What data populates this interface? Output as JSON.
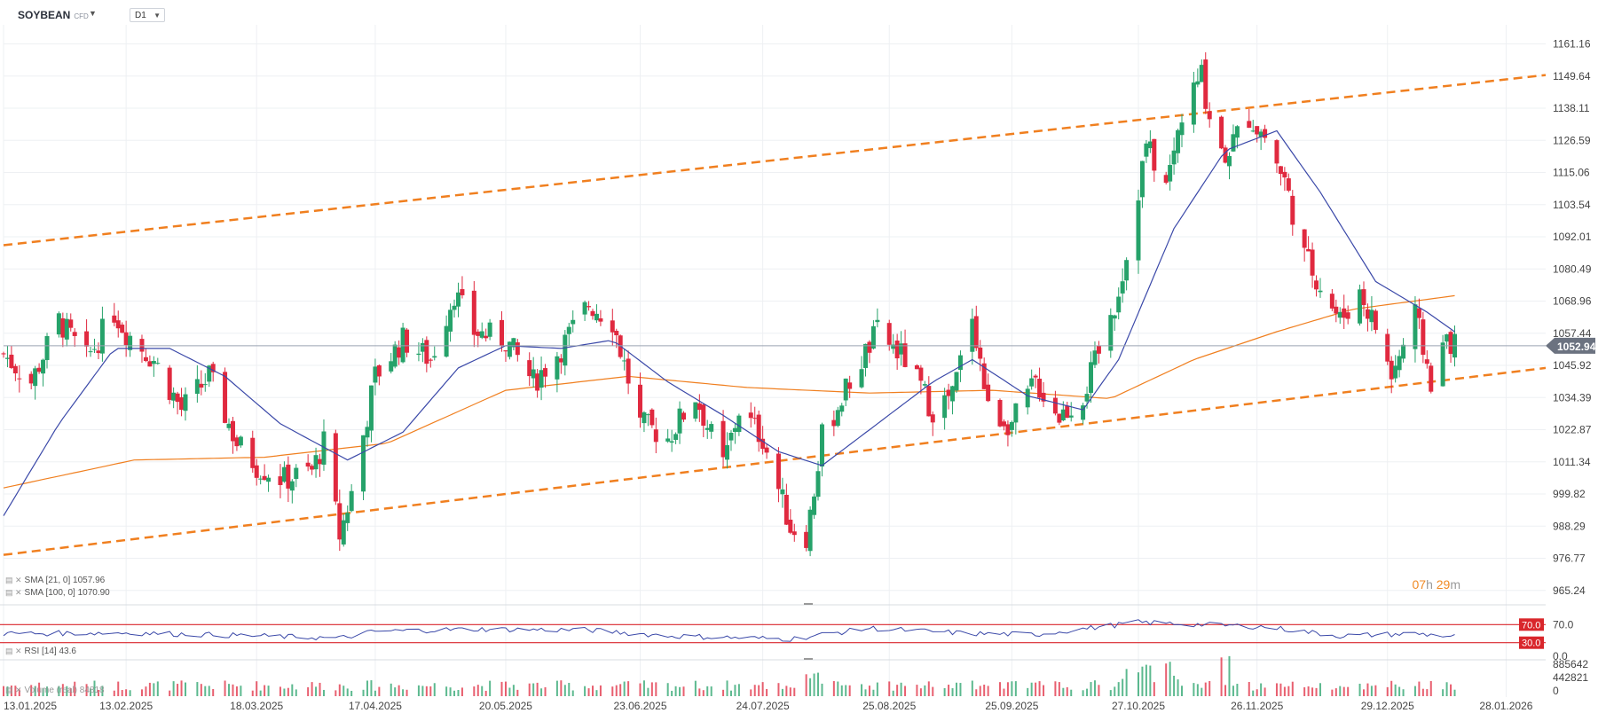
{
  "header": {
    "symbol": "SOYBEAN",
    "symbol_type": "CFD",
    "timeframe": "D1"
  },
  "indicators": {
    "sma21": {
      "label": "SMA",
      "params": "[21, 0]",
      "value": "1057.96",
      "color": "#3a48a8"
    },
    "sma100": {
      "label": "SMA",
      "params": "[100, 0]",
      "value": "1070.90",
      "color": "#f07f1f"
    },
    "rsi": {
      "label": "RSI",
      "params": "[14]",
      "value": "43.6",
      "upper": "70.0",
      "lower": "30.0",
      "axis_top": "70.0",
      "axis_bottom": "0.0"
    },
    "volume": {
      "label": "Volume (real)",
      "value": "84818",
      "axis": [
        "885642",
        "442821",
        "0"
      ]
    }
  },
  "timer": {
    "hours": "07",
    "h": "h",
    "minutes": "29",
    "m": "m"
  },
  "current_price": "1052.94",
  "colors": {
    "up": "#26a26a",
    "down": "#e0293f",
    "channel": "#f07f1f",
    "rsi_line": "#3a48a8",
    "rsi_bounds": "#d9262b"
  },
  "chart_data": {
    "type": "candlestick",
    "title": "SOYBEAN CFD D1",
    "y_ticks": [
      "1161.16",
      "1149.64",
      "1138.11",
      "1126.59",
      "1115.06",
      "1103.54",
      "1092.01",
      "1080.49",
      "1068.96",
      "1057.44",
      "1045.92",
      "1034.39",
      "1022.87",
      "1011.34",
      "999.82",
      "988.29",
      "976.77",
      "965.24"
    ],
    "x_ticks": [
      "13.01.2025",
      "13.02.2025",
      "18.03.2025",
      "17.04.2025",
      "20.05.2025",
      "23.06.2025",
      "24.07.2025",
      "25.08.2025",
      "25.09.2025",
      "27.10.2025",
      "26.11.2025",
      "29.12.2025",
      "28.01.2026"
    ],
    "ylim": [
      962,
      1168
    ],
    "x_range": [
      "2025-01-13",
      "2026-02-07"
    ],
    "series_keypoints": [
      [
        "2025-01-13",
        1050
      ],
      [
        "2025-01-20",
        1040
      ],
      [
        "2025-01-27",
        1062
      ],
      [
        "2025-02-03",
        1048
      ],
      [
        "2025-02-10",
        1065
      ],
      [
        "2025-02-13",
        1058
      ],
      [
        "2025-02-20",
        1048
      ],
      [
        "2025-02-27",
        1030
      ],
      [
        "2025-03-06",
        1042
      ],
      [
        "2025-03-13",
        1018
      ],
      [
        "2025-03-18",
        1010
      ],
      [
        "2025-03-25",
        1005
      ],
      [
        "2025-04-01",
        1008
      ],
      [
        "2025-04-04",
        1018
      ],
      [
        "2025-04-08",
        985
      ],
      [
        "2025-04-11",
        1000
      ],
      [
        "2025-04-17",
        1042
      ],
      [
        "2025-04-24",
        1055
      ],
      [
        "2025-05-01",
        1048
      ],
      [
        "2025-05-07",
        1072
      ],
      [
        "2025-05-12",
        1058
      ],
      [
        "2025-05-20",
        1055
      ],
      [
        "2025-05-27",
        1040
      ],
      [
        "2025-06-03",
        1052
      ],
      [
        "2025-06-10",
        1068
      ],
      [
        "2025-06-16",
        1062
      ],
      [
        "2025-06-23",
        1025
      ],
      [
        "2025-06-30",
        1020
      ],
      [
        "2025-07-07",
        1035
      ],
      [
        "2025-07-14",
        1010
      ],
      [
        "2025-07-18",
        1030
      ],
      [
        "2025-07-24",
        1020
      ],
      [
        "2025-07-31",
        988
      ],
      [
        "2025-08-04",
        985
      ],
      [
        "2025-08-08",
        1020
      ],
      [
        "2025-08-15",
        1040
      ],
      [
        "2025-08-22",
        1058
      ],
      [
        "2025-08-29",
        1048
      ],
      [
        "2025-09-05",
        1030
      ],
      [
        "2025-09-10",
        1035
      ],
      [
        "2025-09-15",
        1065
      ],
      [
        "2025-09-19",
        1030
      ],
      [
        "2025-09-25",
        1025
      ],
      [
        "2025-10-01",
        1040
      ],
      [
        "2025-10-07",
        1028
      ],
      [
        "2025-10-13",
        1035
      ],
      [
        "2025-10-20",
        1062
      ],
      [
        "2025-10-24",
        1085
      ],
      [
        "2025-10-29",
        1125
      ],
      [
        "2025-11-03",
        1110
      ],
      [
        "2025-11-07",
        1135
      ],
      [
        "2025-11-12",
        1150
      ],
      [
        "2025-11-14",
        1135
      ],
      [
        "2025-11-18",
        1122
      ],
      [
        "2025-11-24",
        1135
      ],
      [
        "2025-11-28",
        1128
      ],
      [
        "2025-12-03",
        1112
      ],
      [
        "2025-12-08",
        1085
      ],
      [
        "2025-12-12",
        1075
      ],
      [
        "2025-12-17",
        1062
      ],
      [
        "2025-12-22",
        1072
      ],
      [
        "2025-12-26",
        1060
      ],
      [
        "2025-12-30",
        1042
      ],
      [
        "2026-01-05",
        1064
      ],
      [
        "2026-01-09",
        1040
      ],
      [
        "2026-01-13",
        1056
      ],
      [
        "2026-01-15",
        1052.94
      ]
    ],
    "sma21_keypoints": [
      [
        "2025-01-13",
        992
      ],
      [
        "2025-01-27",
        1025
      ],
      [
        "2025-02-10",
        1052
      ],
      [
        "2025-02-24",
        1052
      ],
      [
        "2025-03-10",
        1042
      ],
      [
        "2025-03-24",
        1025
      ],
      [
        "2025-04-10",
        1012
      ],
      [
        "2025-04-24",
        1022
      ],
      [
        "2025-05-08",
        1045
      ],
      [
        "2025-05-20",
        1053
      ],
      [
        "2025-06-03",
        1052
      ],
      [
        "2025-06-16",
        1055
      ],
      [
        "2025-06-30",
        1040
      ],
      [
        "2025-07-14",
        1028
      ],
      [
        "2025-07-28",
        1015
      ],
      [
        "2025-08-08",
        1010
      ],
      [
        "2025-08-22",
        1025
      ],
      [
        "2025-09-05",
        1040
      ],
      [
        "2025-09-15",
        1048
      ],
      [
        "2025-09-29",
        1035
      ],
      [
        "2025-10-13",
        1030
      ],
      [
        "2025-10-22",
        1048
      ],
      [
        "2025-11-05",
        1095
      ],
      [
        "2025-11-18",
        1123
      ],
      [
        "2025-12-01",
        1130
      ],
      [
        "2025-12-12",
        1108
      ],
      [
        "2025-12-26",
        1076
      ],
      [
        "2026-01-08",
        1065
      ],
      [
        "2026-01-15",
        1057.96
      ]
    ],
    "sma100_keypoints": [
      [
        "2025-01-13",
        1002
      ],
      [
        "2025-02-15",
        1012
      ],
      [
        "2025-03-20",
        1013
      ],
      [
        "2025-04-20",
        1018
      ],
      [
        "2025-05-20",
        1037
      ],
      [
        "2025-06-20",
        1042
      ],
      [
        "2025-07-20",
        1038
      ],
      [
        "2025-08-20",
        1036
      ],
      [
        "2025-09-20",
        1037
      ],
      [
        "2025-10-20",
        1034
      ],
      [
        "2025-11-10",
        1048
      ],
      [
        "2025-12-01",
        1058
      ],
      [
        "2025-12-20",
        1066
      ],
      [
        "2026-01-15",
        1070.9
      ]
    ],
    "channel_upper": [
      [
        "2025-01-13",
        1089
      ],
      [
        "2026-02-07",
        1150
      ]
    ],
    "channel_lower": [
      [
        "2025-01-13",
        978
      ],
      [
        "2026-02-07",
        1045
      ]
    ],
    "rsi_range": [
      0,
      100
    ],
    "rsi_keypoints": [
      [
        "2025-01-13",
        50
      ],
      [
        "2025-02-13",
        52
      ],
      [
        "2025-03-18",
        45
      ],
      [
        "2025-04-08",
        40
      ],
      [
        "2025-04-17",
        55
      ],
      [
        "2025-05-12",
        60
      ],
      [
        "2025-06-10",
        58
      ],
      [
        "2025-06-30",
        45
      ],
      [
        "2025-07-31",
        38
      ],
      [
        "2025-08-20",
        62
      ],
      [
        "2025-09-15",
        50
      ],
      [
        "2025-10-01",
        48
      ],
      [
        "2025-10-27",
        75
      ],
      [
        "2025-11-12",
        70
      ],
      [
        "2025-11-28",
        65
      ],
      [
        "2025-12-17",
        45
      ],
      [
        "2026-01-05",
        50
      ],
      [
        "2026-01-15",
        43.6
      ]
    ],
    "volume_max": 885642
  }
}
